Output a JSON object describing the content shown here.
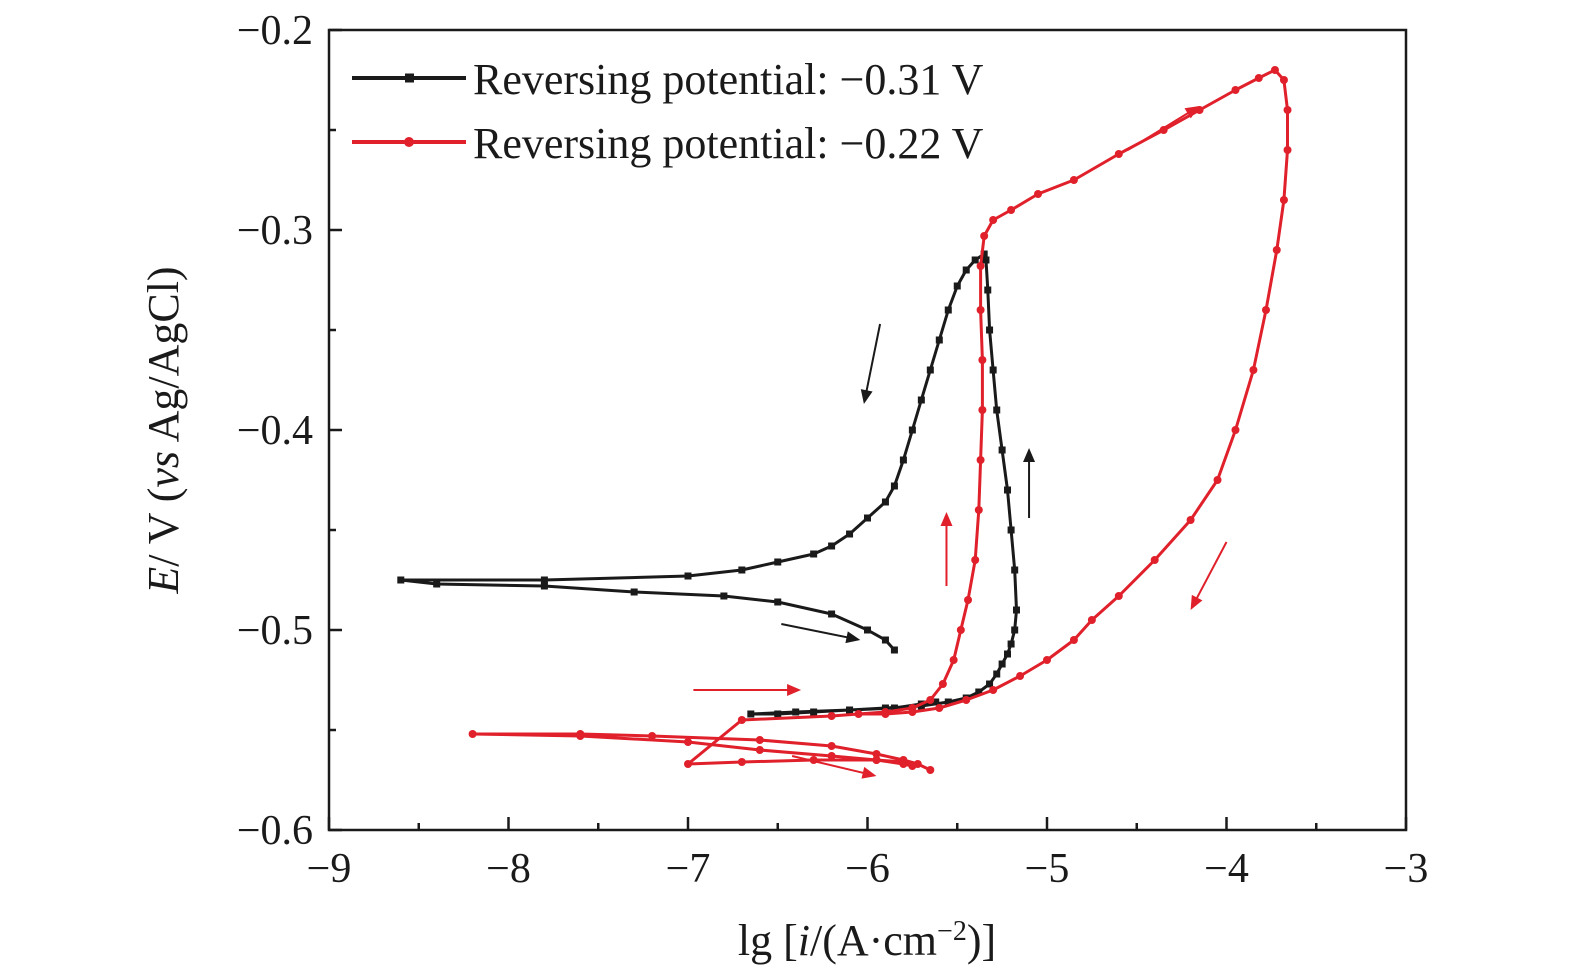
{
  "chart_data": {
    "type": "line",
    "xlabel": "lg [i/(A·cm⁻²)]",
    "ylabel": "E/ V (vs Ag/AgCl)",
    "xlim": [
      -9,
      -3
    ],
    "ylim": [
      -0.6,
      -0.2
    ],
    "x_ticks": [
      -9,
      -8,
      -7,
      -6,
      -5,
      -4,
      -3
    ],
    "y_ticks": [
      -0.2,
      -0.3,
      -0.4,
      -0.5,
      -0.6
    ],
    "x_tick_labels": [
      "−9",
      "−8",
      "−7",
      "−6",
      "−5",
      "−4",
      "−3"
    ],
    "y_tick_labels": [
      "−0.2",
      "−0.3",
      "−0.4",
      "−0.5",
      "−0.6"
    ],
    "grid": false,
    "legend_position": "top-left",
    "series": [
      {
        "name": "Reversing potential: −0.31 V",
        "color": "#1a1a1a",
        "marker": "square",
        "x": [
          -5.85,
          -5.9,
          -6.0,
          -6.2,
          -6.5,
          -6.8,
          -7.3,
          -7.8,
          -8.4,
          -8.6,
          -7.8,
          -7.0,
          -6.7,
          -6.5,
          -6.3,
          -6.2,
          -6.1,
          -6.0,
          -5.9,
          -5.85,
          -5.8,
          -5.75,
          -5.7,
          -5.65,
          -5.6,
          -5.55,
          -5.5,
          -5.45,
          -5.4,
          -5.35,
          -5.34,
          -5.33,
          -5.32,
          -5.3,
          -5.28,
          -5.25,
          -5.22,
          -5.2,
          -5.18,
          -5.17,
          -5.18,
          -5.2,
          -5.22,
          -5.25,
          -5.28,
          -5.32,
          -5.38,
          -5.45,
          -5.55,
          -5.7,
          -5.9,
          -6.1,
          -6.3,
          -6.5,
          -6.65,
          -6.4,
          -6.1,
          -5.85,
          -5.7,
          -5.62
        ],
        "y": [
          -0.51,
          -0.505,
          -0.5,
          -0.492,
          -0.486,
          -0.483,
          -0.481,
          -0.478,
          -0.477,
          -0.475,
          -0.475,
          -0.473,
          -0.47,
          -0.466,
          -0.462,
          -0.458,
          -0.452,
          -0.444,
          -0.436,
          -0.428,
          -0.415,
          -0.4,
          -0.385,
          -0.37,
          -0.355,
          -0.34,
          -0.328,
          -0.32,
          -0.315,
          -0.312,
          -0.315,
          -0.33,
          -0.35,
          -0.37,
          -0.39,
          -0.41,
          -0.43,
          -0.45,
          -0.47,
          -0.49,
          -0.5,
          -0.507,
          -0.512,
          -0.517,
          -0.522,
          -0.527,
          -0.531,
          -0.534,
          -0.536,
          -0.538,
          -0.539,
          -0.54,
          -0.541,
          -0.542,
          -0.542,
          -0.541,
          -0.54,
          -0.539,
          -0.537,
          -0.536
        ]
      },
      {
        "name": "Reversing potential: −0.22 V",
        "color": "#e0202a",
        "marker": "circle",
        "x": [
          -5.65,
          -5.72,
          -5.8,
          -5.95,
          -6.2,
          -6.6,
          -7.2,
          -7.6,
          -8.2,
          -7.6,
          -7.0,
          -6.6,
          -6.2,
          -5.95,
          -5.8,
          -5.75,
          -5.8,
          -5.95,
          -6.3,
          -6.7,
          -7.0,
          -6.7,
          -6.2,
          -5.9,
          -5.75,
          -5.65,
          -5.58,
          -5.52,
          -5.48,
          -5.44,
          -5.4,
          -5.38,
          -5.37,
          -5.36,
          -5.36,
          -5.37,
          -5.37,
          -5.35,
          -5.3,
          -5.2,
          -5.05,
          -4.85,
          -4.6,
          -4.35,
          -4.15,
          -3.95,
          -3.82,
          -3.73,
          -3.68,
          -3.66,
          -3.66,
          -3.68,
          -3.72,
          -3.78,
          -3.85,
          -3.95,
          -4.05,
          -4.2,
          -4.4,
          -4.6,
          -4.75,
          -4.85,
          -5.0,
          -5.15,
          -5.3,
          -5.45,
          -5.6,
          -5.75,
          -5.9,
          -6.05
        ],
        "y": [
          -0.57,
          -0.567,
          -0.565,
          -0.562,
          -0.558,
          -0.555,
          -0.553,
          -0.552,
          -0.552,
          -0.553,
          -0.556,
          -0.56,
          -0.563,
          -0.565,
          -0.567,
          -0.568,
          -0.566,
          -0.565,
          -0.565,
          -0.566,
          -0.567,
          -0.545,
          -0.543,
          -0.541,
          -0.539,
          -0.535,
          -0.527,
          -0.515,
          -0.5,
          -0.485,
          -0.465,
          -0.44,
          -0.415,
          -0.39,
          -0.365,
          -0.34,
          -0.318,
          -0.303,
          -0.295,
          -0.29,
          -0.282,
          -0.275,
          -0.262,
          -0.25,
          -0.24,
          -0.23,
          -0.224,
          -0.22,
          -0.225,
          -0.24,
          -0.26,
          -0.285,
          -0.31,
          -0.34,
          -0.37,
          -0.4,
          -0.425,
          -0.445,
          -0.465,
          -0.483,
          -0.495,
          -0.505,
          -0.515,
          -0.523,
          -0.53,
          -0.535,
          -0.539,
          -0.541,
          -0.542,
          -0.542
        ]
      }
    ],
    "arrows": [
      {
        "color": "#1a1a1a",
        "from": [
          -5.93,
          -0.347
        ],
        "to": [
          -6.02,
          -0.387
        ]
      },
      {
        "color": "#1a1a1a",
        "from": [
          -6.48,
          -0.497
        ],
        "to": [
          -6.04,
          -0.505
        ]
      },
      {
        "color": "#1a1a1a",
        "from": [
          -5.1,
          -0.444
        ],
        "to": [
          -5.1,
          -0.409
        ]
      },
      {
        "color": "#e0202a",
        "from": [
          -5.56,
          -0.478
        ],
        "to": [
          -5.56,
          -0.441
        ]
      },
      {
        "color": "#e0202a",
        "from": [
          -6.97,
          -0.53
        ],
        "to": [
          -6.37,
          -0.53
        ]
      },
      {
        "color": "#e0202a",
        "from": [
          -6.42,
          -0.563
        ],
        "to": [
          -5.95,
          -0.573
        ]
      },
      {
        "color": "#e0202a",
        "from": [
          -4.0,
          -0.456
        ],
        "to": [
          -4.2,
          -0.49
        ]
      },
      {
        "color": "#e0202a",
        "from": [
          -4.55,
          -0.26
        ],
        "to": [
          -4.15,
          -0.238
        ]
      }
    ]
  }
}
